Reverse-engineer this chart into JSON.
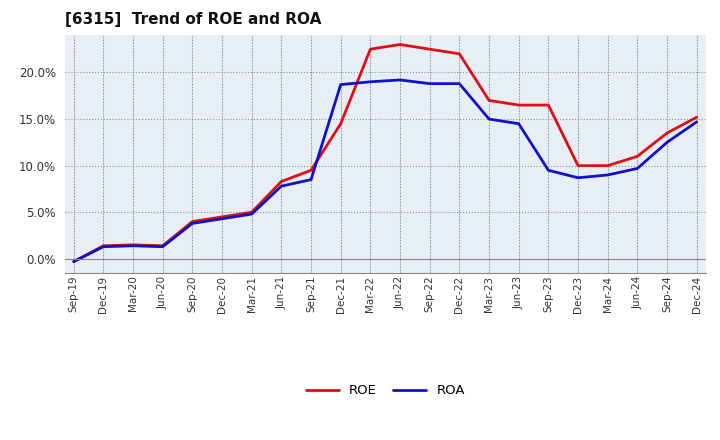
{
  "title": "[6315]  Trend of ROE and ROA",
  "x_labels": [
    "Sep-19",
    "Dec-19",
    "Mar-20",
    "Jun-20",
    "Sep-20",
    "Dec-20",
    "Mar-21",
    "Jun-21",
    "Sep-21",
    "Dec-21",
    "Mar-22",
    "Jun-22",
    "Sep-22",
    "Dec-22",
    "Mar-23",
    "Jun-23",
    "Sep-23",
    "Dec-23",
    "Mar-24",
    "Jun-24",
    "Sep-24",
    "Dec-24"
  ],
  "roe": [
    -0.3,
    1.4,
    1.5,
    1.4,
    4.0,
    4.5,
    5.0,
    8.3,
    9.5,
    14.5,
    22.5,
    23.0,
    22.5,
    22.0,
    17.0,
    16.5,
    16.5,
    10.0,
    10.0,
    11.0,
    13.5,
    15.2
  ],
  "roa": [
    -0.3,
    1.3,
    1.4,
    1.3,
    3.8,
    4.3,
    4.8,
    7.8,
    8.5,
    18.7,
    19.0,
    19.2,
    18.8,
    18.8,
    15.0,
    14.5,
    9.5,
    8.7,
    9.0,
    9.7,
    12.5,
    14.7
  ],
  "roe_color": "#dd1111",
  "roa_color": "#1111cc",
  "background_color": "#ffffff",
  "plot_bg_color": "#e8eef5",
  "grid_color": "#aaaaaa",
  "ylim": [
    -1.5,
    24
  ],
  "yticks": [
    0.0,
    5.0,
    10.0,
    15.0,
    20.0
  ],
  "legend_roe": "ROE",
  "legend_roa": "ROA",
  "line_width": 2.0
}
